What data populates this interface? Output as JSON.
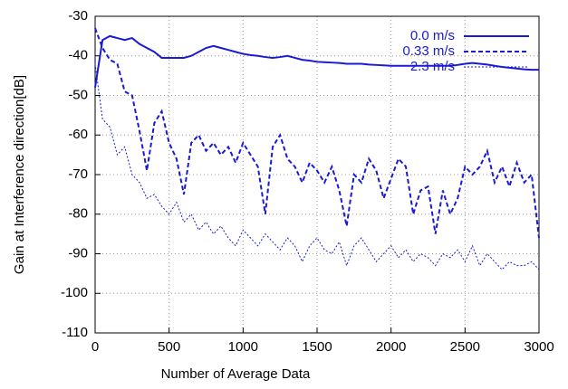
{
  "chart_data": {
    "type": "line",
    "xlabel": "Number of Average Data",
    "ylabel": "Gain at Interference direction[dB]",
    "x": [
      0,
      50,
      100,
      150,
      200,
      250,
      300,
      350,
      400,
      450,
      500,
      550,
      600,
      650,
      700,
      750,
      800,
      850,
      900,
      950,
      1000,
      1050,
      1100,
      1150,
      1200,
      1250,
      1300,
      1350,
      1400,
      1450,
      1500,
      1550,
      1600,
      1650,
      1700,
      1750,
      1800,
      1850,
      1900,
      1950,
      2000,
      2050,
      2100,
      2150,
      2200,
      2250,
      2300,
      2350,
      2400,
      2450,
      2500,
      2550,
      2600,
      2650,
      2700,
      2750,
      2800,
      2850,
      2900,
      2950,
      3000
    ],
    "series": [
      {
        "name": "0.0 m/s",
        "color": "#1a1ad4",
        "line_style": "solid",
        "values": [
          -48,
          -36,
          -35,
          -35.5,
          -36,
          -35.5,
          -37,
          -38,
          -39,
          -40.5,
          -40.5,
          -40.5,
          -40.5,
          -40,
          -39,
          -38,
          -37.5,
          -38,
          -38.5,
          -39,
          -39.5,
          -39.8,
          -40,
          -40.3,
          -40.5,
          -40.3,
          -40,
          -40.5,
          -41,
          -41.2,
          -41.5,
          -41.6,
          -41.7,
          -41.8,
          -42,
          -42,
          -42,
          -42.2,
          -42.3,
          -42.4,
          -42.5,
          -42.5,
          -42.5,
          -42.5,
          -42.5,
          -42.5,
          -42.5,
          -42.5,
          -42.5,
          -42.3,
          -42,
          -41.8,
          -42,
          -42.2,
          -42.5,
          -42.8,
          -43,
          -43.2,
          -43.4,
          -43.5,
          -43.5
        ]
      },
      {
        "name": "0.33 m/s",
        "color": "#1a1ad4",
        "line_style": "dashed",
        "values": [
          -33,
          -38,
          -41,
          -42,
          -49,
          -50,
          -59,
          -69,
          -57,
          -54,
          -62,
          -66,
          -75,
          -62,
          -60,
          -64,
          -62,
          -65,
          -63,
          -67,
          -62,
          -65,
          -68,
          -80,
          -63,
          -60,
          -66,
          -68,
          -72,
          -67,
          -69,
          -72,
          -68,
          -74,
          -83,
          -70,
          -72,
          -66,
          -69,
          -76,
          -71,
          -66,
          -68,
          -80,
          -74,
          -73,
          -85,
          -74,
          -80,
          -76,
          -68,
          -70,
          -68,
          -64,
          -72,
          -68,
          -73,
          -67,
          -72,
          -70,
          -86
        ]
      },
      {
        "name": "2.3 m/s",
        "color": "#1a1ad4",
        "line_style": "dotted",
        "values": [
          -42,
          -56,
          -58,
          -65,
          -63,
          -70,
          -72,
          -76,
          -75,
          -78,
          -80,
          -77,
          -82,
          -80,
          -84,
          -82,
          -85,
          -83,
          -86,
          -88,
          -84,
          -86,
          -88,
          -85,
          -87,
          -89,
          -86,
          -88,
          -92,
          -88,
          -86,
          -89,
          -90,
          -87,
          -93,
          -88,
          -86,
          -89,
          -92,
          -90,
          -88,
          -91,
          -89,
          -92,
          -90,
          -91,
          -93,
          -90,
          -91,
          -89,
          -92,
          -88,
          -93,
          -90,
          -92,
          -94,
          -92,
          -93,
          -93,
          -92,
          -94
        ]
      }
    ],
    "xlim": [
      0,
      3000
    ],
    "xticks": [
      0,
      500,
      1000,
      1500,
      2000,
      2500,
      3000
    ],
    "ylim": [
      -110,
      -30
    ],
    "yticks": [
      -110,
      -100,
      -90,
      -80,
      -70,
      -60,
      -50,
      -40,
      -30
    ],
    "grid": true,
    "legend": "upper right"
  }
}
